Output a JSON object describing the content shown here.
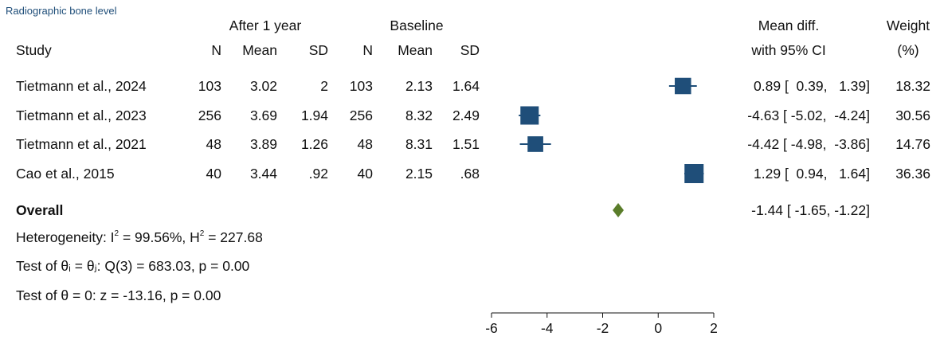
{
  "chart_data": {
    "type": "forest",
    "title": "Radiographic bone level",
    "header": {
      "group1": "After 1 year",
      "group2": "Baseline",
      "study": "Study",
      "n": "N",
      "mean": "Mean",
      "sd": "SD",
      "effect_line1": "Mean diff.",
      "effect_line2": "with 95% CI",
      "weight_line1": "Weight",
      "weight_line2": "(%)"
    },
    "studies": [
      {
        "study": "Tietmann et al., 2024",
        "n1": "103",
        "mean1": "3.02",
        "sd1": "2",
        "n2": "103",
        "mean2": "2.13",
        "sd2": "1.64",
        "effect": 0.89,
        "lower": 0.39,
        "upper": 1.39,
        "ci_text": "0.89 [  0.39,   1.39]",
        "weight": 18.32,
        "weight_text": "18.32"
      },
      {
        "study": "Tietmann et al., 2023",
        "n1": "256",
        "mean1": "3.69",
        "sd1": "1.94",
        "n2": "256",
        "mean2": "8.32",
        "sd2": "2.49",
        "effect": -4.63,
        "lower": -5.02,
        "upper": -4.24,
        "ci_text": "-4.63 [ -5.02,  -4.24]",
        "weight": 30.56,
        "weight_text": "30.56"
      },
      {
        "study": "Tietmann et al., 2021",
        "n1": "48",
        "mean1": "3.89",
        "sd1": "1.26",
        "n2": "48",
        "mean2": "8.31",
        "sd2": "1.51",
        "effect": -4.42,
        "lower": -4.98,
        "upper": -3.86,
        "ci_text": "-4.42 [ -4.98,  -3.86]",
        "weight": 14.76,
        "weight_text": "14.76"
      },
      {
        "study": "Cao et al., 2015",
        "n1": "40",
        "mean1": "3.44",
        "sd1": ".92",
        "n2": "40",
        "mean2": "2.15",
        "sd2": ".68",
        "effect": 1.29,
        "lower": 0.94,
        "upper": 1.64,
        "ci_text": "1.29 [  0.94,   1.64]",
        "weight": 36.36,
        "weight_text": "36.36"
      }
    ],
    "overall": {
      "label": "Overall",
      "effect": -1.44,
      "lower": -1.65,
      "upper": -1.22,
      "ci_text": "-1.44 [ -1.65,  -1.22]"
    },
    "stats": {
      "heterogeneity": "Heterogeneity: I² = 99.56%, H² = 227.68",
      "test_theta_ij": "Test of θᵢ = θⱼ: Q(3) = 683.03, p = 0.00",
      "test_theta_0": "Test of θ = 0: z = -13.16, p = 0.00"
    },
    "x_axis": {
      "ticks": [
        -6,
        -4,
        -2,
        0,
        2
      ],
      "tick_labels": [
        "-6",
        "-4",
        "-2",
        "0",
        "2"
      ],
      "range": [
        -6,
        2
      ]
    },
    "colors": {
      "square": "#1f4e79",
      "diamond": "#5a7d2a",
      "text": "#111111",
      "title": "#1f4e79"
    }
  }
}
